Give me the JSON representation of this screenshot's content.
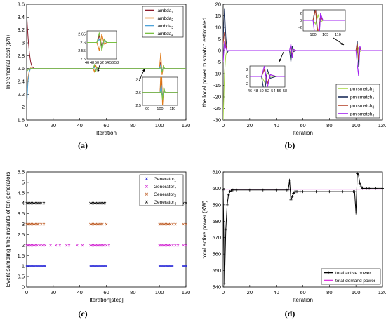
{
  "figure": {
    "caption_a": "(a)",
    "caption_b": "(b)",
    "caption_c": "(c)",
    "caption_d": "(d)"
  },
  "chart_data": [
    {
      "panel": "a",
      "type": "line",
      "xlabel": "Iteration",
      "ylabel": "Incremental cost ($/h)",
      "xlim": [
        0,
        120
      ],
      "ylim": [
        1.8,
        3.6
      ],
      "xticks": [
        "0",
        "20",
        "40",
        "60",
        "80",
        "100",
        "120"
      ],
      "yticks": [
        "1.8",
        "2",
        "2.2",
        "2.4",
        "2.6",
        "2.8",
        "3",
        "3.2",
        "3.4",
        "3.6"
      ],
      "legend_position": "top-right",
      "series": [
        {
          "name": "lambda1",
          "label": "lambda",
          "sub": "1",
          "color": "#8b1a2b",
          "x": [
            0,
            1,
            2,
            3,
            4,
            5,
            6,
            8,
            10,
            48,
            50,
            51,
            52,
            53,
            54,
            56,
            100,
            100.5,
            101,
            102,
            103,
            104,
            106,
            120
          ],
          "y": [
            3.45,
            3.1,
            2.85,
            2.7,
            2.63,
            2.61,
            2.6,
            2.6,
            2.6,
            2.6,
            2.6,
            2.64,
            2.58,
            2.61,
            2.6,
            2.6,
            2.6,
            2.66,
            2.7,
            2.56,
            2.62,
            2.6,
            2.6,
            2.6
          ]
        },
        {
          "name": "lambda2",
          "label": "lambda",
          "sub": "2",
          "color": "#e07b1a",
          "x": [
            0,
            1,
            2,
            3,
            4,
            5,
            6,
            8,
            10,
            48,
            50,
            51,
            52,
            53,
            54,
            56,
            100,
            100.5,
            101,
            102,
            103,
            104,
            106,
            120
          ],
          "y": [
            2.2,
            2.45,
            2.57,
            2.61,
            2.6,
            2.6,
            2.6,
            2.6,
            2.6,
            2.6,
            2.6,
            2.55,
            2.65,
            2.59,
            2.6,
            2.6,
            2.6,
            2.72,
            2.85,
            2.5,
            2.64,
            2.6,
            2.6,
            2.6
          ]
        },
        {
          "name": "lambda3",
          "label": "lambda",
          "sub": "3",
          "color": "#4fa3d9",
          "x": [
            0,
            1,
            2,
            3,
            4,
            5,
            6,
            8,
            10,
            48,
            50,
            51,
            52,
            53,
            54,
            56,
            100,
            100.5,
            101,
            102,
            103,
            104,
            106,
            120
          ],
          "y": [
            2.0,
            2.4,
            2.55,
            2.6,
            2.6,
            2.6,
            2.6,
            2.6,
            2.6,
            2.6,
            2.6,
            2.62,
            2.57,
            2.61,
            2.6,
            2.6,
            2.6,
            2.63,
            2.66,
            2.56,
            2.61,
            2.6,
            2.6,
            2.6
          ]
        },
        {
          "name": "lambda4",
          "label": "lambda",
          "sub": "4",
          "color": "#7ac142",
          "x": [
            0,
            1,
            2,
            3,
            4,
            5,
            6,
            8,
            10,
            48,
            50,
            51,
            52,
            53,
            54,
            56,
            100,
            100.5,
            101,
            102,
            103,
            104,
            106,
            120
          ],
          "y": [
            2.55,
            2.58,
            2.6,
            2.6,
            2.6,
            2.6,
            2.6,
            2.6,
            2.6,
            2.6,
            2.6,
            2.66,
            2.55,
            2.62,
            2.6,
            2.6,
            2.6,
            2.6,
            2.62,
            2.54,
            2.64,
            2.6,
            2.6,
            2.6
          ]
        }
      ],
      "insets": [
        {
          "xticks": [
            "46",
            "48",
            "50",
            "52",
            "54",
            "56",
            "58"
          ],
          "yticks": [
            "2.5",
            "2.55",
            "2.6",
            "2.65"
          ],
          "xlim": [
            46,
            58
          ],
          "ylim": [
            2.5,
            2.67
          ]
        },
        {
          "xticks": [
            "90",
            "100",
            "110"
          ],
          "yticks": [
            "2.5",
            "2.6",
            "2.7"
          ],
          "xlim": [
            86,
            114
          ],
          "ylim": [
            2.5,
            2.72
          ]
        }
      ]
    },
    {
      "panel": "b",
      "type": "line",
      "xlabel": "Iteration",
      "ylabel": "the local power mismatch estimated",
      "xlim": [
        0,
        120
      ],
      "ylim": [
        -30,
        20
      ],
      "xticks": [
        "0",
        "20",
        "40",
        "60",
        "80",
        "100",
        "120"
      ],
      "yticks": [
        "-30",
        "-25",
        "-20",
        "-15",
        "-10",
        "-5",
        "0",
        "5",
        "10",
        "15",
        "20"
      ],
      "legend_position": "bottom-right",
      "series": [
        {
          "name": "pmismatch1",
          "label": "pmismatch",
          "sub": "1",
          "color": "#a8d94a",
          "x": [
            0,
            1,
            2,
            3,
            4,
            6,
            48,
            50,
            51,
            52,
            53,
            55,
            100,
            101,
            102,
            103,
            104,
            106,
            120
          ],
          "y": [
            -30,
            -10,
            -2,
            0,
            0,
            0,
            0,
            0,
            -1.5,
            1,
            0,
            0,
            0,
            -1,
            1.5,
            -0.5,
            0,
            0,
            0
          ]
        },
        {
          "name": "pmismatch2",
          "label": "pmismatch",
          "sub": "2",
          "color": "#1c2f5a",
          "x": [
            0,
            1,
            2,
            3,
            4,
            6,
            48,
            50,
            51,
            52,
            53,
            55,
            100,
            101,
            102,
            103,
            104,
            106,
            120
          ],
          "y": [
            5,
            18,
            6,
            -1,
            0,
            0,
            0,
            0,
            -5,
            2,
            -0.5,
            0,
            0,
            4,
            -7,
            1,
            0,
            0,
            0
          ]
        },
        {
          "name": "pmismatch3",
          "label": "pmismatch",
          "sub": "3",
          "color": "#b5462e",
          "x": [
            0,
            1,
            2,
            3,
            4,
            6,
            48,
            50,
            51,
            52,
            53,
            55,
            100,
            101,
            102,
            103,
            104,
            106,
            120
          ],
          "y": [
            3,
            8,
            2,
            0,
            0,
            0,
            0,
            0,
            2,
            -2,
            0.5,
            0,
            0,
            3,
            -4,
            1,
            0,
            0,
            0
          ]
        },
        {
          "name": "pmismatch4",
          "label": "pmismatch",
          "sub": "4",
          "color": "#a020f0",
          "x": [
            0,
            1,
            2,
            3,
            4,
            6,
            48,
            50,
            51,
            52,
            53,
            55,
            100,
            101,
            102,
            103,
            104,
            106,
            120
          ],
          "y": [
            -5,
            4,
            1,
            0,
            0,
            0,
            0,
            0,
            3,
            -3,
            0.5,
            0,
            0,
            -6,
            -11,
            2,
            0,
            0,
            0
          ]
        }
      ],
      "insets": [
        {
          "xticks": [
            "100",
            "105",
            "110"
          ],
          "yticks": [
            "-2",
            "0",
            "2"
          ],
          "xlim": [
            96,
            113
          ],
          "ylim": [
            -3,
            3
          ]
        },
        {
          "xticks": [
            "46",
            "48",
            "50",
            "52",
            "54",
            "56",
            "58"
          ],
          "yticks": [
            "-2",
            "0",
            "2"
          ],
          "xlim": [
            46,
            58
          ],
          "ylim": [
            -3,
            3
          ]
        }
      ]
    },
    {
      "panel": "c",
      "type": "scatter",
      "xlabel": "Iteration[step]",
      "ylabel": "Event sampling  time instants of ten generators",
      "xlim": [
        0,
        120
      ],
      "ylim": [
        0,
        5.5
      ],
      "xticks": [
        "0",
        "20",
        "40",
        "60",
        "80",
        "100",
        "120"
      ],
      "yticks": [
        "0",
        "0.5",
        "1",
        "1.5",
        "2",
        "2.5",
        "3",
        "3.5",
        "4",
        "4.5",
        "5",
        "5.5"
      ],
      "legend_position": "top-right",
      "series": [
        {
          "name": "Generator1",
          "label": "Generator",
          "sub": "1",
          "color": "#1f1fd6",
          "level": 1,
          "x": [
            0,
            1,
            2,
            3,
            4,
            5,
            6,
            7,
            8,
            9,
            10,
            11,
            12,
            13,
            14,
            48,
            49,
            50,
            51,
            52,
            53,
            54,
            55,
            56,
            57,
            58,
            59,
            60,
            100,
            101,
            102,
            103,
            104,
            105,
            106,
            107,
            108,
            109,
            110,
            118,
            119,
            120
          ]
        },
        {
          "name": "Generator2",
          "label": "Generator",
          "sub": "2",
          "color": "#d42fd4",
          "level": 2,
          "x": [
            0,
            1,
            2,
            3,
            4,
            5,
            6,
            7,
            8,
            10,
            12,
            14,
            18,
            22,
            25,
            30,
            32,
            38,
            42,
            48,
            49,
            50,
            51,
            52,
            53,
            54,
            55,
            56,
            57,
            58,
            60,
            62,
            100,
            101,
            102,
            103,
            104,
            105,
            106,
            107,
            108,
            110,
            112,
            114,
            118,
            120
          ]
        },
        {
          "name": "Generator3",
          "label": "Generator",
          "sub": "3",
          "color": "#c0612b",
          "level": 3,
          "x": [
            0,
            1,
            2,
            3,
            4,
            5,
            6,
            7,
            8,
            9,
            11,
            13,
            48,
            49,
            50,
            51,
            52,
            53,
            54,
            55,
            56,
            57,
            60,
            100,
            101,
            102,
            103,
            104,
            105,
            106,
            107,
            108,
            110,
            112,
            118,
            120
          ]
        },
        {
          "name": "Generator4",
          "label": "Generator",
          "sub": "4",
          "color": "#111111",
          "level": 4,
          "x": [
            0,
            1,
            2,
            3,
            4,
            5,
            6,
            7,
            8,
            9,
            10,
            11,
            13,
            48,
            49,
            50,
            51,
            52,
            53,
            54,
            55,
            56,
            57,
            58,
            59,
            100,
            101,
            102,
            103,
            104,
            105,
            106,
            107,
            108,
            109,
            111,
            118,
            120
          ]
        }
      ]
    },
    {
      "panel": "d",
      "type": "line",
      "xlabel": "Iteration",
      "ylabel": "total active power (KW)",
      "xlim": [
        0,
        120
      ],
      "ylim": [
        540,
        610
      ],
      "xticks": [
        "0",
        "20",
        "40",
        "60",
        "80",
        "100",
        "120"
      ],
      "yticks": [
        "540",
        "550",
        "560",
        "570",
        "580",
        "590",
        "600",
        "610"
      ],
      "legend_position": "bottom-right",
      "series": [
        {
          "name": "total active power",
          "label": "total active power",
          "color": "#000000",
          "marker": "+",
          "x": [
            0,
            1,
            2,
            3,
            4,
            5,
            6,
            7,
            8,
            10,
            20,
            30,
            40,
            48,
            49,
            50,
            51,
            52,
            53,
            54,
            55,
            56,
            58,
            60,
            70,
            80,
            90,
            98,
            99,
            100,
            101,
            102,
            103,
            104,
            105,
            106,
            108,
            110,
            115,
            120
          ],
          "y": [
            599,
            542,
            575,
            590,
            596,
            598,
            598.5,
            599,
            599,
            599,
            599,
            599,
            599,
            599,
            599,
            605,
            593,
            595,
            597,
            598,
            598,
            598,
            598,
            598,
            598,
            598,
            598,
            598,
            598,
            585,
            609,
            608,
            603,
            601,
            600,
            600,
            600,
            600,
            600,
            600
          ]
        },
        {
          "name": "total demand power",
          "label": "total demand power",
          "color": "#e033e0",
          "x": [
            0,
            120
          ],
          "y": [
            599.5,
            599.5
          ]
        }
      ]
    }
  ]
}
